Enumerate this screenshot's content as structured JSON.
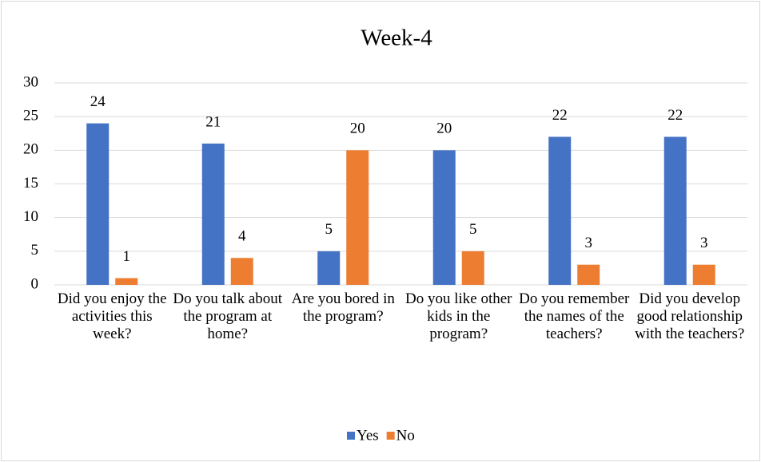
{
  "chart_data": {
    "type": "bar",
    "title": "Week-4",
    "categories": [
      "Did you enjoy the activities this week?",
      "Do you talk about the program at home?",
      "Are you bored in the program?",
      "Do you like other kids in the program?",
      "Do you remember the names of the teachers?",
      "Did you develop good relationship with the teachers?"
    ],
    "series": [
      {
        "name": "Yes",
        "color": "#4472c4",
        "values": [
          24,
          21,
          5,
          20,
          22,
          22
        ]
      },
      {
        "name": "No",
        "color": "#ed7d31",
        "values": [
          1,
          4,
          20,
          5,
          3,
          3
        ]
      }
    ],
    "ylim": [
      0,
      30
    ],
    "yticks": [
      0,
      5,
      10,
      15,
      20,
      25,
      30
    ],
    "grid": true,
    "legend": "bottom"
  }
}
